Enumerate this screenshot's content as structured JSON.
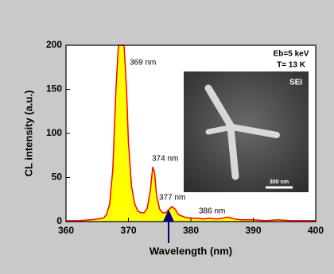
{
  "chart_data": {
    "type": "area",
    "xlabel": "Wavelength (nm)",
    "ylabel": "CL intensity (a.u.)",
    "x": [
      360,
      362,
      364,
      365,
      366,
      366.5,
      367,
      367.5,
      368,
      368.4,
      369.3,
      369.7,
      370,
      370.5,
      371,
      371.5,
      372,
      372.5,
      373,
      373.5,
      373.9,
      374.2,
      374.5,
      375,
      375.5,
      376,
      376.5,
      377,
      377.5,
      378,
      379,
      380,
      381,
      382,
      383,
      384,
      385,
      386,
      387,
      388,
      390,
      392,
      394,
      396,
      398,
      400
    ],
    "series": [
      {
        "color": "#ff0000",
        "fill": "#ffff00",
        "values": [
          1,
          1,
          2,
          3,
          4,
          8,
          20,
          60,
          150,
          200,
          200,
          150,
          90,
          40,
          20,
          12,
          10,
          10,
          15,
          35,
          62,
          55,
          30,
          14,
          10,
          10,
          14,
          17,
          14,
          8,
          5,
          4,
          4,
          3,
          4,
          3,
          4,
          5,
          3,
          2,
          2,
          1,
          2,
          1,
          1,
          1
        ]
      }
    ],
    "xlim": [
      360,
      400
    ],
    "ylim": [
      0,
      200
    ],
    "xticks": [
      360,
      370,
      380,
      390,
      400
    ],
    "yticks": [
      0,
      50,
      100,
      150,
      200
    ],
    "annotations": [
      "369 nm",
      "374 nm",
      "377 nm",
      "386 nm",
      "Eb=5 keV",
      "T= 13 K"
    ],
    "inset": {
      "labels": [
        "SEI",
        "300 nm"
      ]
    }
  }
}
